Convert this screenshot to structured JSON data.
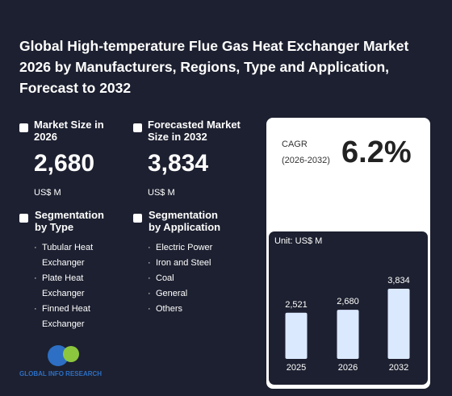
{
  "title": "Global High-temperature Flue Gas Heat Exchanger Market 2026 by Manufacturers, Regions, Type and Application, Forecast to 2032",
  "market_size": {
    "label": "Market Size in 2026",
    "value": "2,680",
    "unit": "US$ M"
  },
  "forecast": {
    "label": "Forecasted Market Size in 2032",
    "value": "3,834",
    "unit": "US$ M"
  },
  "segmentation_type": {
    "title": "Segmentation by Type",
    "items": [
      "Tubular Heat Exchanger",
      "Plate Heat Exchanger",
      "Finned Heat Exchanger"
    ]
  },
  "segmentation_application": {
    "title": "Segmentation by Application",
    "items": [
      "Electric Power",
      "Iron and Steel",
      "Coal",
      "General",
      "Others"
    ]
  },
  "cagr": {
    "label": "CAGR",
    "period": "(2026-2032)",
    "value": "6.2%"
  },
  "logo": "GLOBAL INFO RESEARCH",
  "chart_data": {
    "type": "bar",
    "subtitle": "Unit: US$ M",
    "categories": [
      "2025",
      "2026",
      "2032"
    ],
    "values": [
      2521,
      2680,
      3834
    ],
    "value_labels": [
      "2,521",
      "2,680",
      "3,834"
    ],
    "color": "#dbe9ff"
  }
}
